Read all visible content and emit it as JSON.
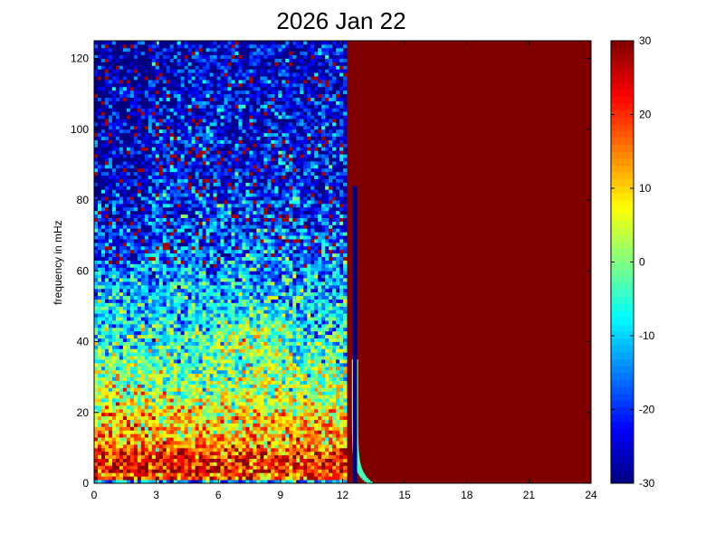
{
  "chart_data": {
    "type": "heatmap",
    "title": "2026 Jan 22",
    "xlabel": "",
    "ylabel": "frequency in mHz",
    "xlim": [
      0,
      24
    ],
    "ylim": [
      0,
      125
    ],
    "xticks": [
      0,
      3,
      6,
      9,
      12,
      15,
      18,
      21,
      24
    ],
    "yticks": [
      0,
      20,
      40,
      60,
      80,
      100,
      120
    ],
    "colorbar": {
      "colormap": "jet",
      "clim": [
        -30,
        30
      ],
      "ticks": [
        -30,
        -20,
        -10,
        0,
        10,
        20,
        30
      ]
    },
    "regions": [
      {
        "name": "spectrogram data",
        "x_range": [
          0,
          12.2
        ],
        "y_range": [
          0,
          125
        ],
        "description_trend": "high values (20-30) at low frequencies 0-10 mHz, decreasing to about -10 near 40 mHz, and about -25 above 80 mHz"
      },
      {
        "name": "saturated block",
        "x_range": [
          12.2,
          24
        ],
        "y_range": [
          0,
          125
        ],
        "value": 30
      },
      {
        "name": "dark vertical line",
        "x_range": [
          12.5,
          12.7
        ],
        "y_range": [
          0,
          84
        ],
        "value": -30
      }
    ]
  }
}
